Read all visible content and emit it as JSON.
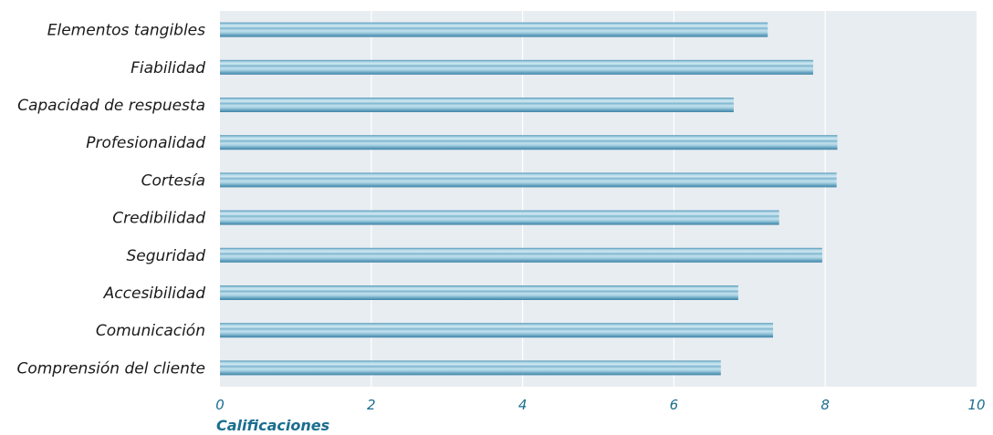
{
  "chart_data": {
    "type": "bar",
    "orientation": "horizontal",
    "categories": [
      "Elementos tangibles",
      "Fiabilidad",
      "Capacidad de respuesta",
      "Profesionalidad",
      "Cortesía",
      "Credibilidad",
      "Seguridad",
      "Accesibilidad",
      "Comunicación",
      "Comprensión del cliente"
    ],
    "values": [
      7.24,
      7.84,
      6.79,
      8.16,
      8.15,
      7.39,
      7.96,
      6.85,
      7.31,
      6.62
    ],
    "xlabel": "Calificaciones",
    "ylabel": "",
    "xlim": [
      0,
      10
    ],
    "xticks": [
      "0",
      "2",
      "4",
      "6",
      "8",
      "10"
    ],
    "grid": true,
    "colors": {
      "plot_background": "#e8edf1",
      "grid": "#ffffff",
      "bar_light": "#c5e2ee",
      "bar_mid": "#8ec3d8",
      "bar_dark": "#4f93b4",
      "tick_text": "#1b6e8f",
      "label_text": "#1a1a1a"
    }
  }
}
